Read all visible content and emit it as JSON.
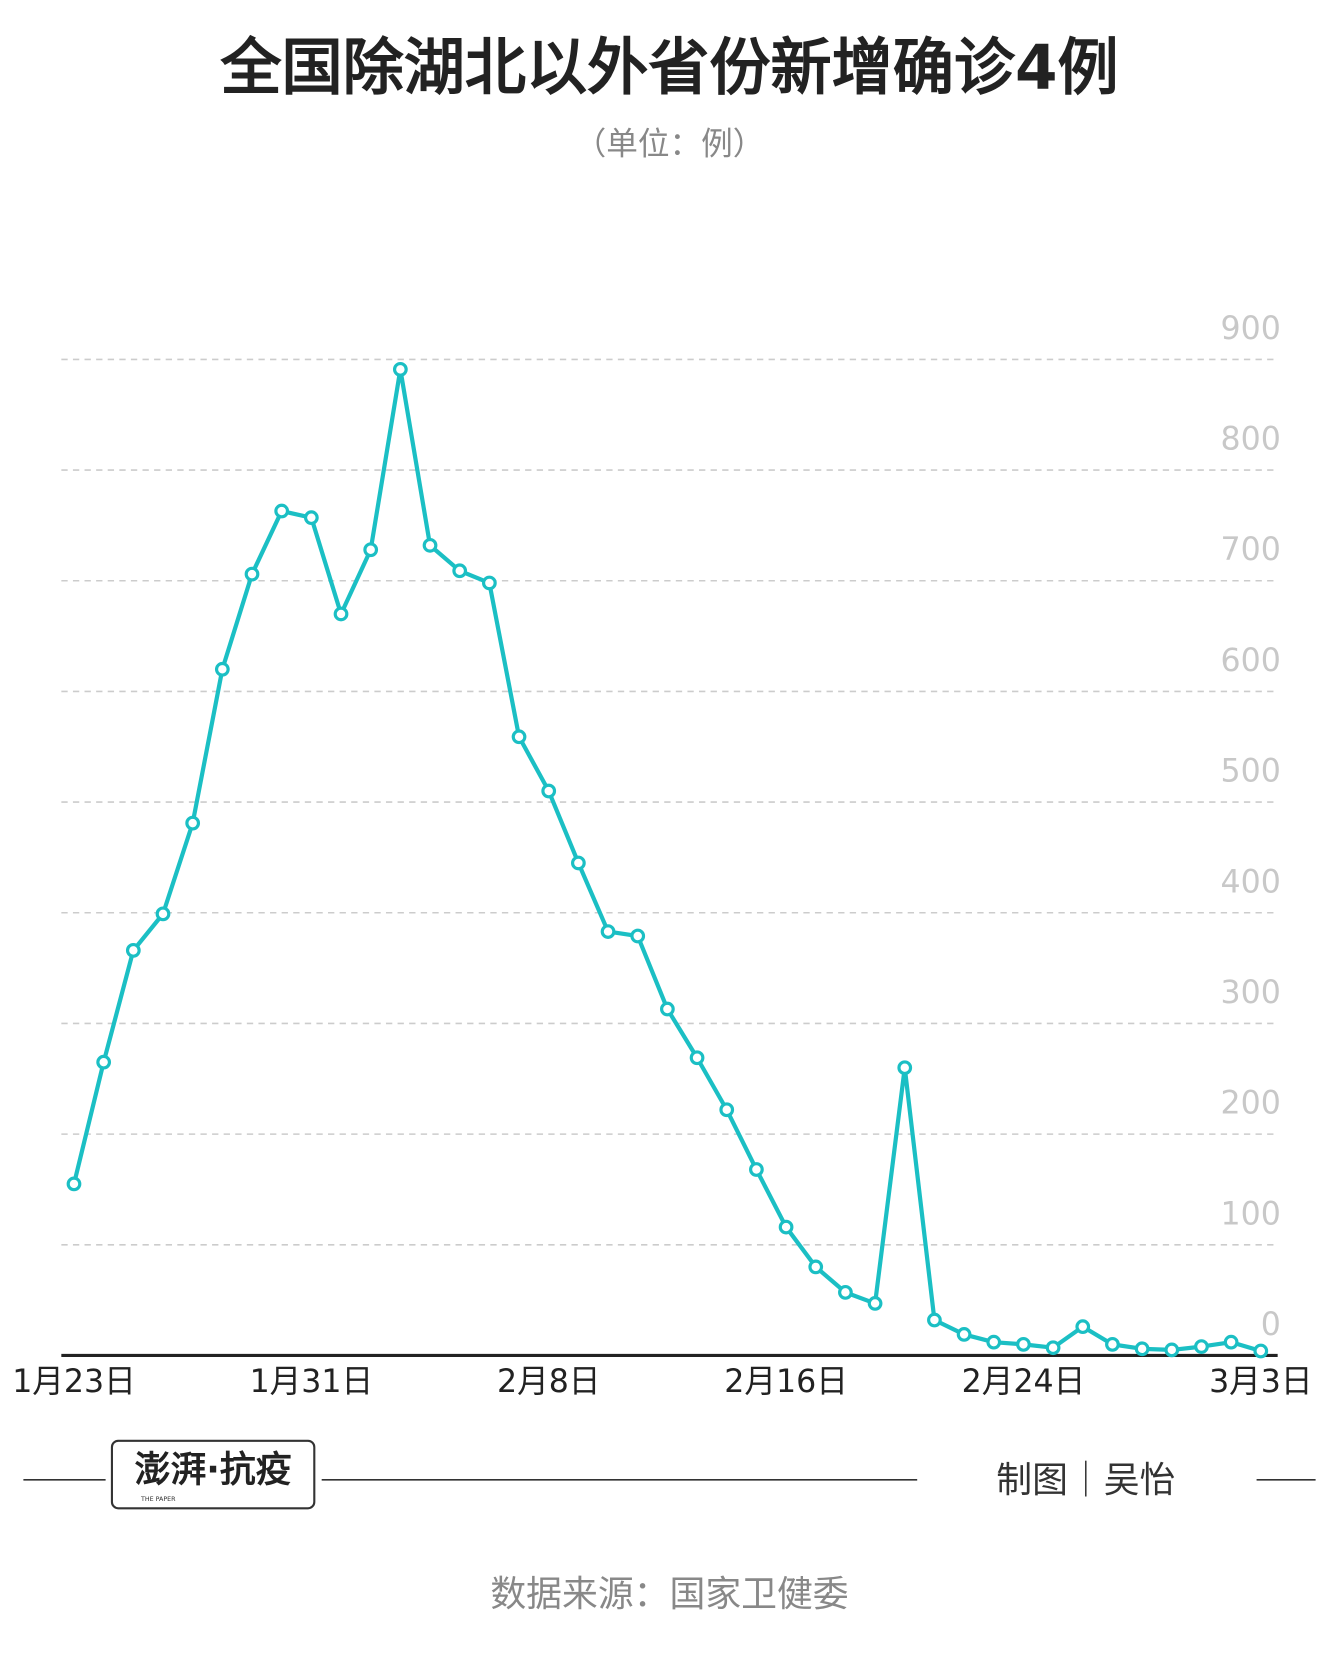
{
  "chart_data": {
    "type": "line",
    "title": "全国除湖北以外省份新增确诊4例",
    "subtitle": "（单位：例）",
    "categories": [
      "1月23日",
      null,
      null,
      null,
      null,
      null,
      null,
      null,
      "1月31日",
      null,
      null,
      null,
      null,
      null,
      null,
      null,
      "2月8日",
      null,
      null,
      null,
      null,
      null,
      null,
      null,
      "2月16日",
      null,
      null,
      null,
      null,
      null,
      null,
      null,
      "2月24日",
      null,
      null,
      null,
      null,
      null,
      null,
      null,
      "3月3日"
    ],
    "series": [
      {
        "name": "新增确诊",
        "color": "#1bbfc4",
        "values": [
          155,
          265,
          366,
          399,
          481,
          620,
          706,
          763,
          757,
          670,
          728,
          891,
          732,
          709,
          698,
          559,
          510,
          445,
          383,
          379,
          313,
          269,
          222,
          168,
          116,
          80,
          57,
          47,
          260,
          32,
          19,
          12,
          10,
          7,
          26,
          10,
          6,
          5,
          8,
          12,
          4
        ]
      }
    ],
    "ylim": [
      0,
      900
    ],
    "yticks": [
      0,
      100,
      200,
      300,
      400,
      500,
      600,
      700,
      800,
      900
    ],
    "grid": true
  },
  "footer": {
    "logo": "澎湃·抗疫",
    "logo_sub": "THE PAPER",
    "credit": "制图｜吴怡",
    "source": "数据来源：国家卫健委"
  }
}
